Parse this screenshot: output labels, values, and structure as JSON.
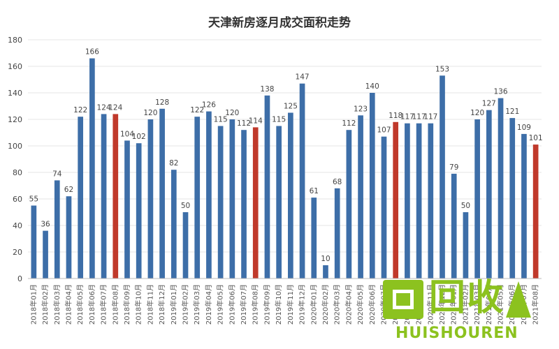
{
  "chart_data": {
    "type": "bar",
    "title": "天津新房逐月成交面积走势",
    "xlabel": "",
    "ylabel": "",
    "ylim": [
      0,
      180
    ],
    "yticks": [
      0,
      20,
      40,
      60,
      80,
      100,
      120,
      140,
      160,
      180
    ],
    "grid": true,
    "categories": [
      "2018年01月",
      "2018年02月",
      "2018年03月",
      "2018年04月",
      "2018年05月",
      "2018年06月",
      "2018年07月",
      "2018年08月",
      "2018年09月",
      "2018年10月",
      "2018年11月",
      "2018年12月",
      "2019年01月",
      "2019年02月",
      "2019年03月",
      "2019年04月",
      "2019年05月",
      "2019年06月",
      "2019年07月",
      "2019年08月",
      "2019年09月",
      "2019年10月",
      "2019年11月",
      "2019年12月",
      "2020年01月",
      "2020年02月",
      "2020年03月",
      "2020年04月",
      "2020年05月",
      "2020年06月",
      "2020年07月",
      "2020年08月",
      "2020年09月",
      "2020年10月",
      "2020年11月",
      "2020年12月",
      "2021年01月",
      "2021年02月",
      "2021年03月",
      "2021年04月",
      "2021年05月",
      "2021年06月",
      "2021年07月",
      "2021年08月"
    ],
    "values": [
      55,
      36,
      74,
      62,
      122,
      166,
      124,
      124,
      104,
      102,
      120,
      128,
      82,
      50,
      122,
      126,
      115,
      120,
      112,
      114,
      138,
      115,
      125,
      147,
      61,
      10,
      68,
      112,
      123,
      140,
      107,
      118,
      117,
      117,
      117,
      153,
      79,
      50,
      120,
      127,
      136,
      121,
      109,
      101
    ],
    "highlighted_indices": [
      7,
      19,
      31,
      43
    ],
    "colors": {
      "bar": "#3d6ea8",
      "highlight": "#c0392b"
    }
  },
  "watermark": {
    "text_cn": "回收",
    "text_en": "HUISHOUREN"
  }
}
